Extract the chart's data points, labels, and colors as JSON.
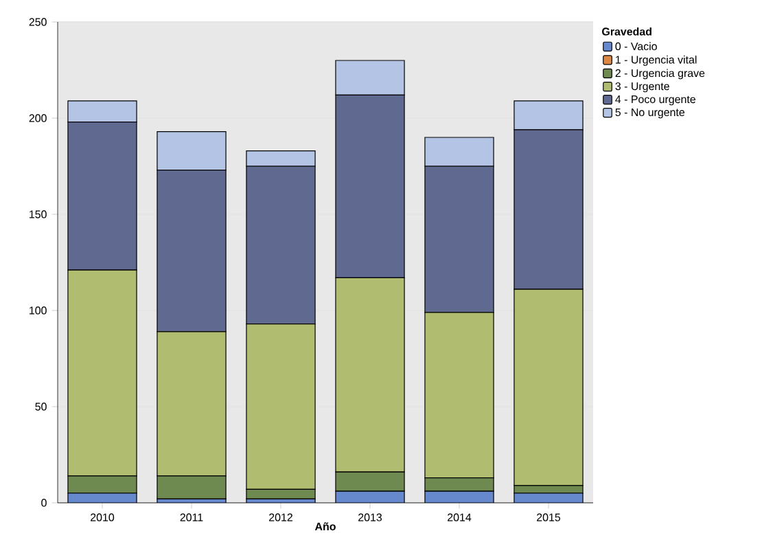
{
  "chart_data": {
    "type": "bar",
    "stacked": true,
    "xlabel": "Año",
    "legend_title": "Gravedad",
    "legend": "top right",
    "grid": "y",
    "categories": [
      "2010",
      "2011",
      "2012",
      "2013",
      "2014",
      "2015"
    ],
    "ylim": [
      0,
      250
    ],
    "yticks": [
      0,
      50,
      100,
      150,
      200,
      250
    ],
    "series": [
      {
        "name": "0 - Vacio",
        "color": "#6688cc",
        "values": [
          5,
          2,
          2,
          6,
          6,
          5
        ]
      },
      {
        "name": "1 - Urgencia vital",
        "color": "#dd8844",
        "values": [
          0,
          0,
          0,
          0,
          0,
          0
        ]
      },
      {
        "name": "2 - Urgencia grave",
        "color": "#6e8a50",
        "values": [
          9,
          12,
          5,
          10,
          7,
          4
        ]
      },
      {
        "name": "3 - Urgente",
        "color": "#b0bc70",
        "values": [
          107,
          75,
          86,
          101,
          86,
          102
        ]
      },
      {
        "name": "4 - Poco urgente",
        "color": "#606a90",
        "values": [
          77,
          84,
          82,
          95,
          76,
          83
        ]
      },
      {
        "name": "5 - No urgente",
        "color": "#b4c4e4",
        "values": [
          11,
          20,
          8,
          18,
          15,
          15
        ]
      }
    ]
  }
}
